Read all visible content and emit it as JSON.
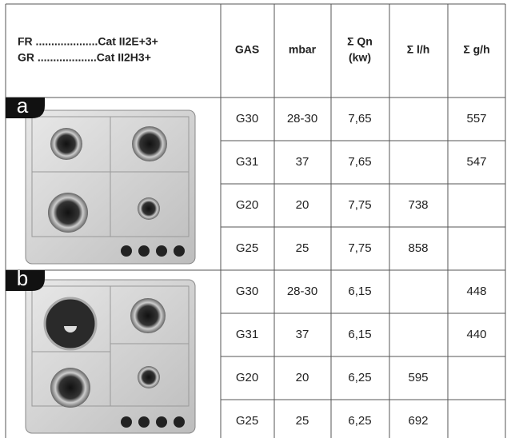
{
  "header": {
    "cat_lines": [
      "FR ....................Cat II2E+3+",
      "GR ...................Cat II2H3+"
    ],
    "gas": "GAS",
    "mbar": "mbar",
    "qn": [
      "Σ Qn",
      "(kw)"
    ],
    "lh": "Σ l/h",
    "gh": "Σ g/h"
  },
  "sections": [
    {
      "label": "a",
      "rows": [
        {
          "gas": "G30",
          "mbar": "28-30",
          "qn": "7,65",
          "gh": "557"
        },
        {
          "gas": "G31",
          "mbar": "37",
          "qn": "7,65",
          "gh": "547"
        },
        {
          "gas": "G20",
          "mbar": "20",
          "qn": "7,75",
          "lh": "738"
        },
        {
          "gas": "G25",
          "mbar": "25",
          "qn": "7,75",
          "lh": "858"
        }
      ]
    },
    {
      "label": "b",
      "rows": [
        {
          "gas": "G30",
          "mbar": "28-30",
          "qn": "6,15",
          "gh": "448"
        },
        {
          "gas": "G31",
          "mbar": "37",
          "qn": "6,15",
          "gh": "440"
        },
        {
          "gas": "G20",
          "mbar": "20",
          "qn": "6,25",
          "lh": "595"
        },
        {
          "gas": "G25",
          "mbar": "25",
          "qn": "6,25",
          "lh": "692"
        }
      ]
    }
  ]
}
